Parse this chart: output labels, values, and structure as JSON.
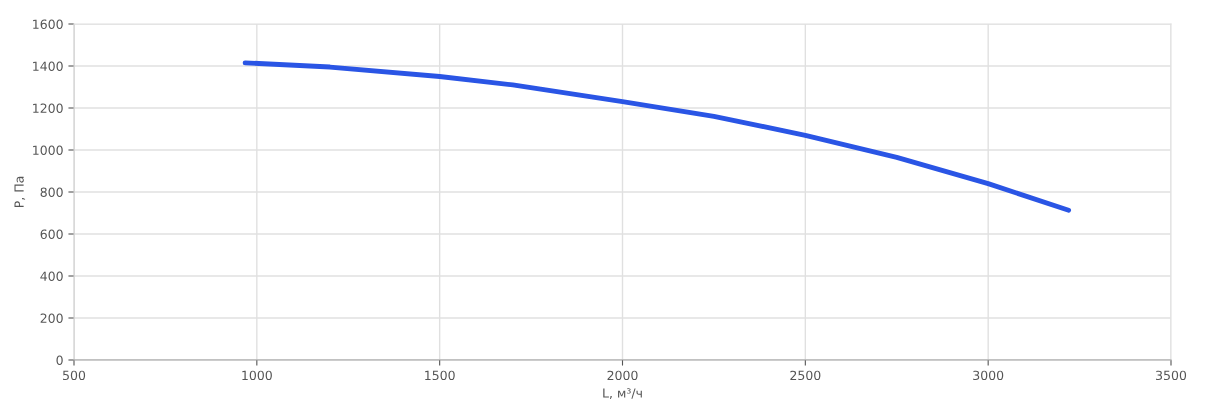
{
  "chart_data": {
    "type": "line",
    "xlabel": "L, м³/ч",
    "ylabel": "P, Па",
    "series": [
      {
        "color": "#2a55e5",
        "x": [
          968,
          1200,
          1500,
          1700,
          2000,
          2250,
          2500,
          2750,
          3000,
          3220
        ],
        "values": [
          1415,
          1395,
          1350,
          1310,
          1230,
          1160,
          1070,
          965,
          840,
          713
        ]
      }
    ],
    "xlim": [
      500,
      3500
    ],
    "xticks": [
      500,
      1000,
      1500,
      2000,
      2500,
      3000,
      3500
    ],
    "ylim": [
      0,
      1600
    ],
    "yticks": [
      0,
      200,
      400,
      600,
      800,
      1000,
      1200,
      1400,
      1600
    ],
    "grid": true,
    "marker": "none",
    "line_style": "solid"
  }
}
